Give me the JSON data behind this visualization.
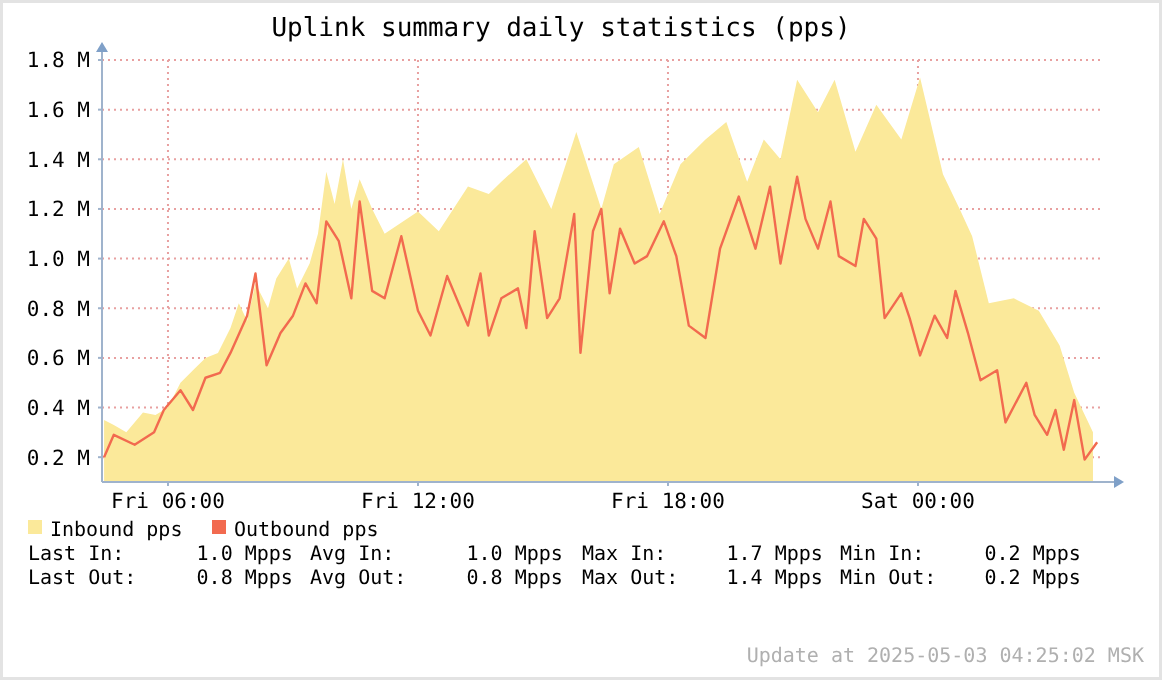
{
  "chart_data": {
    "type": "area",
    "title": "Uplink summary daily statistics (pps)",
    "xlim": [
      "2025-05-02T04:25",
      "2025-05-03T04:25"
    ],
    "xticks": [
      {
        "value": "2025-05-02T06:00",
        "label": "Fri 06:00"
      },
      {
        "value": "2025-05-02T12:00",
        "label": "Fri 12:00"
      },
      {
        "value": "2025-05-02T18:00",
        "label": "Fri 18:00"
      },
      {
        "value": "2025-05-03T00:00",
        "label": "Sat 00:00"
      }
    ],
    "ylim": [
      0.1,
      1.8
    ],
    "yticks": [
      {
        "value": 0.2,
        "label": "0.2 M"
      },
      {
        "value": 0.4,
        "label": "0.4 M"
      },
      {
        "value": 0.6,
        "label": "0.6 M"
      },
      {
        "value": 0.8,
        "label": "0.8 M"
      },
      {
        "value": 1.0,
        "label": "1.0 M"
      },
      {
        "value": 1.2,
        "label": "1.2 M"
      },
      {
        "value": 1.4,
        "label": "1.4 M"
      },
      {
        "value": 1.6,
        "label": "1.6 M"
      },
      {
        "value": 1.8,
        "label": "1.8 M"
      }
    ],
    "grid": true,
    "legend": "bottom left",
    "series": [
      {
        "name": "Inbound pps",
        "type": "area",
        "color": "#fbe99a",
        "x": [
          "2025-05-02T04:28",
          "2025-05-02T04:42",
          "2025-05-02T05:00",
          "2025-05-02T05:24",
          "2025-05-02T05:42",
          "2025-05-02T06:00",
          "2025-05-02T06:18",
          "2025-05-02T06:36",
          "2025-05-02T06:54",
          "2025-05-02T07:12",
          "2025-05-02T07:30",
          "2025-05-02T07:42",
          "2025-05-02T07:54",
          "2025-05-02T08:06",
          "2025-05-02T08:24",
          "2025-05-02T08:36",
          "2025-05-02T08:54",
          "2025-05-02T09:06",
          "2025-05-02T09:24",
          "2025-05-02T09:36",
          "2025-05-02T09:48",
          "2025-05-02T10:00",
          "2025-05-02T10:12",
          "2025-05-02T10:24",
          "2025-05-02T10:36",
          "2025-05-02T10:54",
          "2025-05-02T11:12",
          "2025-05-02T12:00",
          "2025-05-02T12:30",
          "2025-05-02T13:12",
          "2025-05-02T13:42",
          "2025-05-02T14:00",
          "2025-05-02T14:36",
          "2025-05-02T15:12",
          "2025-05-02T15:48",
          "2025-05-02T16:24",
          "2025-05-02T16:42",
          "2025-05-02T17:18",
          "2025-05-02T17:48",
          "2025-05-02T18:18",
          "2025-05-02T18:54",
          "2025-05-02T19:24",
          "2025-05-02T19:54",
          "2025-05-02T20:18",
          "2025-05-02T20:42",
          "2025-05-02T21:06",
          "2025-05-02T21:36",
          "2025-05-02T22:00",
          "2025-05-02T22:30",
          "2025-05-02T23:00",
          "2025-05-02T23:36",
          "2025-05-03T00:03",
          "2025-05-03T00:36",
          "2025-05-03T01:00",
          "2025-05-03T01:18",
          "2025-05-03T01:42",
          "2025-05-03T02:18",
          "2025-05-03T02:54",
          "2025-05-03T03:24",
          "2025-05-03T03:45",
          "2025-05-03T04:12"
        ],
        "values": [
          0.35,
          0.33,
          0.3,
          0.38,
          0.37,
          0.4,
          0.5,
          0.55,
          0.6,
          0.62,
          0.72,
          0.82,
          0.75,
          0.9,
          0.8,
          0.92,
          1.0,
          0.88,
          0.98,
          1.1,
          1.35,
          1.22,
          1.4,
          1.2,
          1.32,
          1.2,
          1.1,
          1.19,
          1.11,
          1.29,
          1.26,
          1.31,
          1.4,
          1.2,
          1.51,
          1.2,
          1.38,
          1.45,
          1.18,
          1.38,
          1.48,
          1.55,
          1.31,
          1.48,
          1.4,
          1.72,
          1.59,
          1.72,
          1.43,
          1.62,
          1.48,
          1.73,
          1.34,
          1.2,
          1.09,
          0.82,
          0.84,
          0.79,
          0.65,
          0.46,
          0.3
        ]
      },
      {
        "name": "Outbound pps",
        "type": "line",
        "color": "#f26a4f",
        "x": [
          "2025-05-02T04:28",
          "2025-05-02T04:42",
          "2025-05-02T05:12",
          "2025-05-02T05:40",
          "2025-05-02T05:54",
          "2025-05-02T06:18",
          "2025-05-02T06:36",
          "2025-05-02T06:54",
          "2025-05-02T07:15",
          "2025-05-02T07:30",
          "2025-05-02T07:54",
          "2025-05-02T08:06",
          "2025-05-02T08:22",
          "2025-05-02T08:42",
          "2025-05-02T09:00",
          "2025-05-02T09:18",
          "2025-05-02T09:34",
          "2025-05-02T09:48",
          "2025-05-02T10:06",
          "2025-05-02T10:24",
          "2025-05-02T10:36",
          "2025-05-02T10:54",
          "2025-05-02T11:12",
          "2025-05-02T11:36",
          "2025-05-02T12:00",
          "2025-05-02T12:18",
          "2025-05-02T12:42",
          "2025-05-02T13:12",
          "2025-05-02T13:30",
          "2025-05-02T13:42",
          "2025-05-02T14:00",
          "2025-05-02T14:24",
          "2025-05-02T14:36",
          "2025-05-02T14:48",
          "2025-05-02T15:06",
          "2025-05-02T15:24",
          "2025-05-02T15:45",
          "2025-05-02T15:54",
          "2025-05-02T16:12",
          "2025-05-02T16:24",
          "2025-05-02T16:36",
          "2025-05-02T16:51",
          "2025-05-02T17:12",
          "2025-05-02T17:30",
          "2025-05-02T17:54",
          "2025-05-02T18:12",
          "2025-05-02T18:30",
          "2025-05-02T18:54",
          "2025-05-02T19:15",
          "2025-05-02T19:42",
          "2025-05-02T20:06",
          "2025-05-02T20:27",
          "2025-05-02T20:42",
          "2025-05-02T21:06",
          "2025-05-02T21:18",
          "2025-05-02T21:36",
          "2025-05-02T21:54",
          "2025-05-02T22:06",
          "2025-05-02T22:30",
          "2025-05-02T22:42",
          "2025-05-02T23:00",
          "2025-05-02T23:12",
          "2025-05-02T23:36",
          "2025-05-02T23:48",
          "2025-05-03T00:03",
          "2025-05-03T00:24",
          "2025-05-03T00:42",
          "2025-05-03T00:54",
          "2025-05-03T01:12",
          "2025-05-03T01:30",
          "2025-05-03T01:54",
          "2025-05-03T02:06",
          "2025-05-03T02:36",
          "2025-05-03T02:48",
          "2025-05-03T03:06",
          "2025-05-03T03:18",
          "2025-05-03T03:30",
          "2025-05-03T03:45",
          "2025-05-03T04:00",
          "2025-05-03T04:18"
        ],
        "values": [
          0.2,
          0.29,
          0.25,
          0.3,
          0.39,
          0.47,
          0.39,
          0.52,
          0.54,
          0.62,
          0.77,
          0.94,
          0.57,
          0.7,
          0.77,
          0.9,
          0.82,
          1.15,
          1.07,
          0.84,
          1.23,
          0.87,
          0.84,
          1.09,
          0.79,
          0.69,
          0.93,
          0.73,
          0.94,
          0.69,
          0.84,
          0.88,
          0.72,
          1.11,
          0.76,
          0.84,
          1.18,
          0.62,
          1.11,
          1.2,
          0.86,
          1.12,
          0.98,
          1.01,
          1.15,
          1.01,
          0.73,
          0.68,
          1.04,
          1.25,
          1.04,
          1.29,
          0.98,
          1.33,
          1.16,
          1.04,
          1.23,
          1.01,
          0.97,
          1.16,
          1.08,
          0.76,
          0.86,
          0.76,
          0.61,
          0.77,
          0.68,
          0.87,
          0.7,
          0.51,
          0.55,
          0.34,
          0.5,
          0.37,
          0.29,
          0.39,
          0.23,
          0.43,
          0.19,
          0.26
        ]
      }
    ],
    "annotations": [
      "Last In:      1.0 Mpps",
      "Avg In:      1.0 Mpps",
      "Max In:     1.7 Mpps",
      "Min In:     0.2 Mpps",
      "Last Out:     0.8 Mpps",
      "Avg Out:     0.8 Mpps",
      "Max Out:    1.4 Mpps",
      "Min Out:    0.2 Mpps",
      "Update at 2025-05-03 04:25:02 MSK"
    ]
  }
}
